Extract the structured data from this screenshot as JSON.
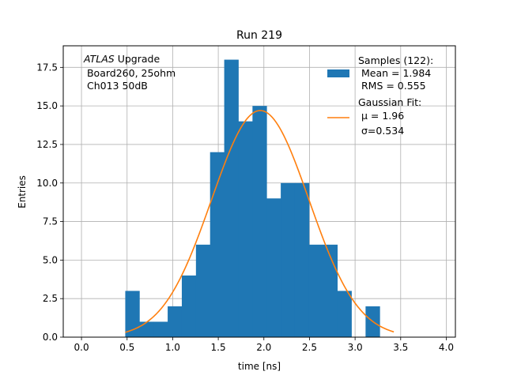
{
  "chart_data": {
    "type": "bar",
    "title": "Run 219",
    "xlabel": "time [ns]",
    "ylabel": "Entries",
    "xlim": [
      -0.2,
      4.1
    ],
    "ylim": [
      0,
      18.9
    ],
    "grid": true,
    "xticks": [
      0.0,
      0.5,
      1.0,
      1.5,
      2.0,
      2.5,
      3.0,
      3.5,
      4.0
    ],
    "xtick_labels": [
      "0.0",
      "0.5",
      "1.0",
      "1.5",
      "2.0",
      "2.5",
      "3.0",
      "3.5",
      "4.0"
    ],
    "yticks": [
      0.0,
      2.5,
      5.0,
      7.5,
      10.0,
      12.5,
      15.0,
      17.5
    ],
    "ytick_labels": [
      "0.0",
      "2.5",
      "5.0",
      "7.5",
      "10.0",
      "12.5",
      "15.0",
      "17.5"
    ],
    "histogram": {
      "name": "Samples (122):",
      "color": "#1f77b4",
      "bin_width": 0.155,
      "bin_edges": [
        0.48,
        0.635,
        0.79,
        0.945,
        1.1,
        1.255,
        1.41,
        1.565,
        1.72,
        1.875,
        2.03,
        2.185,
        2.34,
        2.495,
        2.65,
        2.805,
        2.96,
        3.115,
        3.27,
        3.425
      ],
      "counts": [
        3,
        1,
        1,
        2,
        4,
        6,
        12,
        18,
        14,
        15,
        9,
        10,
        10,
        6,
        6,
        3,
        0,
        2,
        0
      ]
    },
    "fit": {
      "name": "Gaussian Fit:",
      "color": "#ff7f0e",
      "mu": 1.96,
      "sigma": 0.534,
      "amplitude": 14.7,
      "x_range": [
        0.48,
        3.425
      ]
    },
    "legend": {
      "location": "top-right",
      "hist_lines": [
        "Samples (122):",
        " Mean = 1.984",
        " RMS = 0.555"
      ],
      "fit_lines": [
        "Gaussian Fit:",
        " μ = 1.96",
        " σ=0.534"
      ]
    },
    "annotation": {
      "location": "top-left",
      "italic": "ATLAS",
      "line1_rest": " Upgrade",
      "line2": " Board260, 25ohm",
      "line3": " Ch013 50dB"
    }
  }
}
